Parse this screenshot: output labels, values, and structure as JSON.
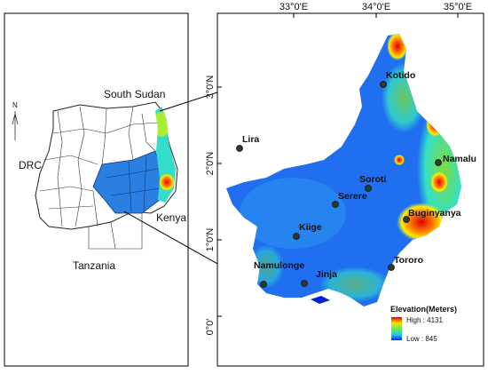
{
  "inset_map": {
    "north_label": "N",
    "countries": [
      "South Sudan",
      "DRC",
      "Kenya",
      "Tanzania"
    ]
  },
  "main_map": {
    "longitude_labels": [
      "33°0'E",
      "34°0'E",
      "35°0'E"
    ],
    "latitude_labels": [
      "3°0'N",
      "2°0'N",
      "1°0'N",
      "0°0'"
    ],
    "towns": [
      "Kotido",
      "Lira",
      "Namalu",
      "Soroti",
      "Serere",
      "Buginyanya",
      "Kiige",
      "Namulonge",
      "Jinja",
      "Tororo"
    ]
  },
  "legend": {
    "title": "Elevation(Meters)",
    "high": "High : 4131",
    "low": "Low : 845"
  }
}
